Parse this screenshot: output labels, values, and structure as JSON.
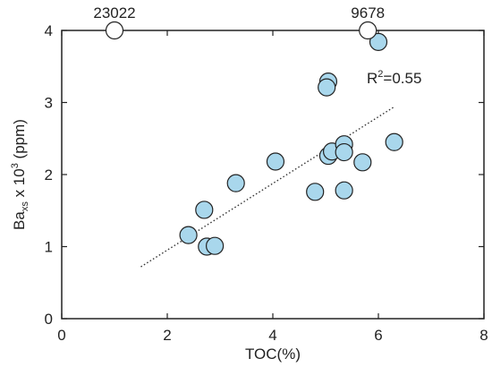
{
  "chart_data": {
    "type": "scatter",
    "xlabel": "TOC(%)",
    "ylabel": {
      "base": "Ba",
      "sub": "xs",
      "mid": " x 10",
      "sup": "3",
      "end": " (ppm)"
    },
    "xlim": [
      0,
      8
    ],
    "ylim": [
      0,
      4
    ],
    "xticks": [
      0,
      2,
      4,
      6,
      8
    ],
    "yticks": [
      0,
      1,
      2,
      3,
      4
    ],
    "grid": false,
    "points": [
      {
        "x": 2.4,
        "y": 1.16
      },
      {
        "x": 2.7,
        "y": 1.51
      },
      {
        "x": 2.75,
        "y": 1.0
      },
      {
        "x": 2.9,
        "y": 1.01
      },
      {
        "x": 3.3,
        "y": 1.88
      },
      {
        "x": 4.05,
        "y": 2.18
      },
      {
        "x": 4.8,
        "y": 1.76
      },
      {
        "x": 5.05,
        "y": 3.29
      },
      {
        "x": 5.02,
        "y": 3.21
      },
      {
        "x": 5.05,
        "y": 2.26
      },
      {
        "x": 5.12,
        "y": 2.32
      },
      {
        "x": 5.35,
        "y": 2.42
      },
      {
        "x": 5.35,
        "y": 2.31
      },
      {
        "x": 5.35,
        "y": 1.78
      },
      {
        "x": 5.7,
        "y": 2.17
      },
      {
        "x": 6.0,
        "y": 3.84
      },
      {
        "x": 6.3,
        "y": 2.45
      }
    ],
    "outliers": [
      {
        "x": 1.0,
        "y": 4.0,
        "label": "23022"
      },
      {
        "x": 5.8,
        "y": 4.0,
        "label": "9678"
      }
    ],
    "trendline": {
      "x": [
        1.5,
        6.3
      ],
      "y": [
        0.72,
        2.94
      ]
    },
    "annotation": {
      "text": "R",
      "sup": "2",
      "rest": "=0.55"
    },
    "colors": {
      "point_fill": "#a9d7ec",
      "point_stroke": "#222222",
      "outlier_fill": "#ffffff"
    }
  }
}
